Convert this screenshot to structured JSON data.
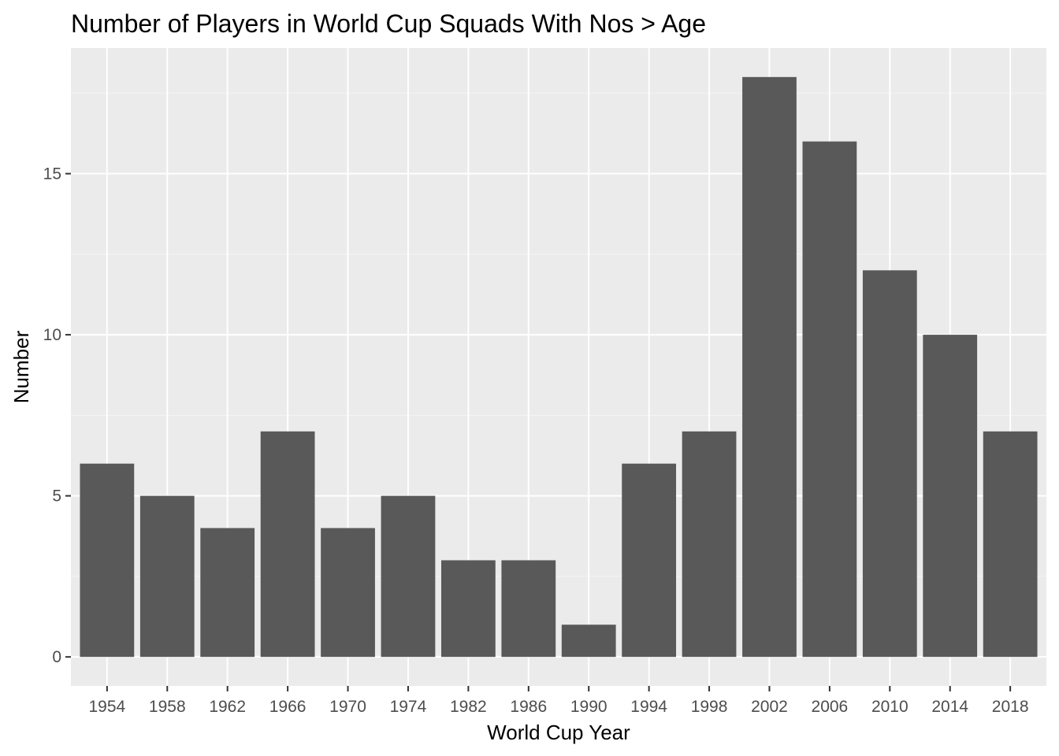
{
  "chart_data": {
    "type": "bar",
    "title": "Number of Players in World Cup Squads With Nos > Age",
    "xlabel": "World Cup Year",
    "ylabel": "Number",
    "categories": [
      "1954",
      "1958",
      "1962",
      "1966",
      "1970",
      "1974",
      "1982",
      "1986",
      "1990",
      "1994",
      "1998",
      "2002",
      "2006",
      "2010",
      "2014",
      "2018"
    ],
    "values": [
      6,
      5,
      4,
      7,
      4,
      5,
      3,
      3,
      1,
      6,
      7,
      18,
      16,
      12,
      10,
      7
    ],
    "y_ticks": [
      0,
      5,
      10,
      15
    ],
    "ylim": [
      -0.9,
      18.9
    ],
    "grid": true,
    "legend": "none",
    "colors": {
      "bar": "#595959",
      "panel": "#ebebeb",
      "grid_major": "#ffffff",
      "grid_minor": "#f5f5f5",
      "tick": "#333333"
    }
  }
}
